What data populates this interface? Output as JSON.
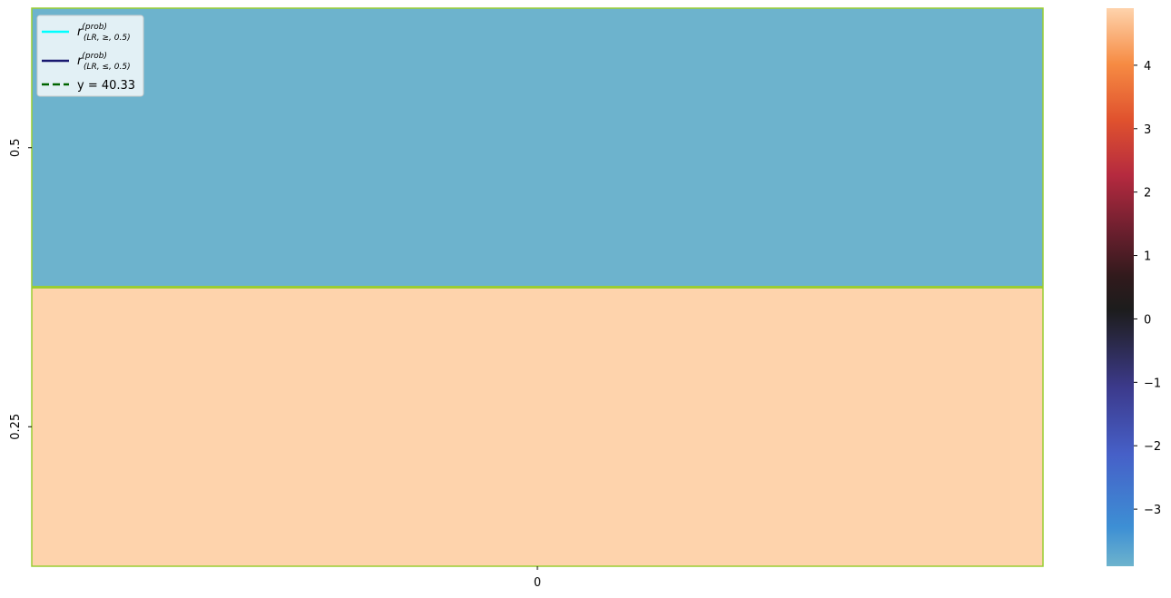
{
  "chart_data": {
    "type": "heatmap",
    "title": "",
    "xlabel": "",
    "ylabel": "",
    "x_categories": [
      "0"
    ],
    "y_categories": [
      "0.5",
      "0.25"
    ],
    "values": [
      [
        -3.9
      ],
      [
        4.9
      ]
    ],
    "colorbar": {
      "min": -3.9,
      "max": 4.9,
      "ticks": [
        -3,
        -2,
        -1,
        0,
        1,
        2,
        3,
        4
      ],
      "colormap": "icefire"
    },
    "cell_colors": [
      "#6db3cd",
      "#fed3ac"
    ],
    "grid_line_color": "#9acd32",
    "legend": {
      "placement": "top-left",
      "entries": [
        {
          "label_main": "r",
          "label_sup": "(prob)",
          "label_sub": "(LR, ≥, 0.5)",
          "color": "#00ffff",
          "style": "solid"
        },
        {
          "label_main": "r",
          "label_sup": "(prob)",
          "label_sub": "(LR, ≤, 0.5)",
          "color": "#191970",
          "style": "solid"
        },
        {
          "label": "y = 40.33",
          "color": "#006400",
          "style": "dashed"
        }
      ]
    }
  }
}
